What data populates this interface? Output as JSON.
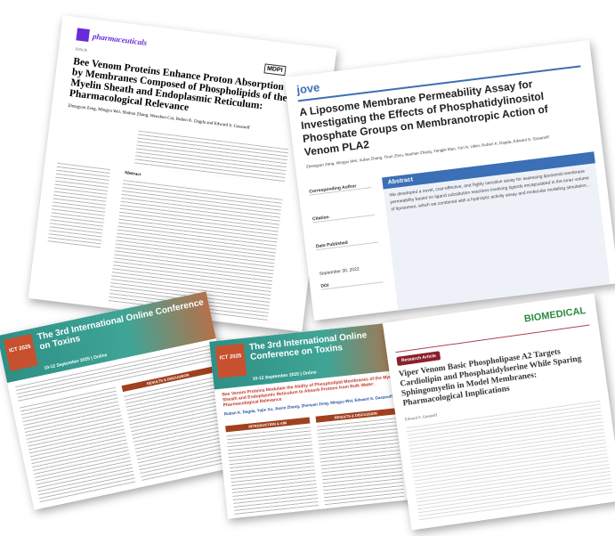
{
  "paper_mdpi": {
    "journal": "pharmaceuticals",
    "publisher": "MDPI",
    "type": "Article",
    "title": "Bee Venom Proteins Enhance Proton Absorption by Membranes Composed of Phospholipids of the Myelin Sheath and Endoplasmic Reticulum: Pharmacological Relevance",
    "authors": "Zhengyan Zeng, Mingyu Wei, Shuhua Zhang, Wenzhen Cui, Ruben K. Dagda and Edward S. Gasanoff",
    "abstract_label": "Abstract"
  },
  "paper_jove": {
    "journal": "jove",
    "title": "A Liposome Membrane Permeability Assay for Investigating the Effects of Phosphatidylinositol Phosphate Groups on Membranotropic Action of Venom PLA2",
    "authors": "Zhengyan Zeng, Mingyu Wei, Xufan Zhang, Tiran Zhou, Baohan Zhang, Yangjie Mao, Yuri N. Utkin, Ruben K. Dagda, Edward S. Gasanoff",
    "corresponding_author_label": "Corresponding Author",
    "citation_label": "Citation",
    "date_published_label": "Date Published",
    "date_published": "September 30, 2022",
    "doi_label": "DOI",
    "abstract_label": "Abstract",
    "abstract_text": "We developed a novel, cost-effective, and highly sensitive assay for assessing liposomal membrane permeability based on ligand substitution reactions involving ligands encapsulated in the inner volume of liposomes, which we combined with a hydrolytic activity assay and molecular modeling simulation..."
  },
  "poster_1": {
    "badge": "ICT 2025",
    "conference": "The 3rd International Online Conference on Toxins",
    "dates": "10-12 September 2025 | Online",
    "section": "RESULTS & DISCUSSION"
  },
  "poster_2": {
    "badge": "ICT 2025",
    "conference": "The 3rd International Online Conference on Toxins",
    "dates": "10-12 September 2025 | Online",
    "title": "Bee Venom Proteins Modulate the Ability of Phospholipid Membranes of the Myelin Sheath and Endoplasmic Reticulum to Absorb Protons from Bulk Water: Pharmacological Relevance",
    "authors": "Ruben K. Dagda, Yujie Xu, Jiaxin Zhang, Zhenyan Zeng, Mingyu Wei, Edward S. Gasanoff",
    "section_left": "INTRODUCTION & AIM",
    "section_right": "RESULTS & DISCUSSION"
  },
  "paper_biomedical": {
    "journal": "BIOMEDICAL",
    "type": "Research Article",
    "title": "Viper Venom Basic Phospholipase A2 Targets Cardiolipin and Phosphatidylserine While Sparing Sphingomyelin in Model Membranes: Pharmacological Implications",
    "authors": "Edward S. Gasanoff"
  }
}
